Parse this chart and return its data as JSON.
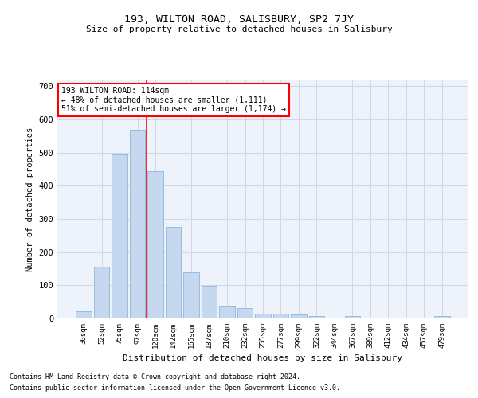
{
  "title1": "193, WILTON ROAD, SALISBURY, SP2 7JY",
  "title2": "Size of property relative to detached houses in Salisbury",
  "xlabel": "Distribution of detached houses by size in Salisbury",
  "ylabel": "Number of detached properties",
  "footer1": "Contains HM Land Registry data © Crown copyright and database right 2024.",
  "footer2": "Contains public sector information licensed under the Open Government Licence v3.0.",
  "categories": [
    "30sqm",
    "52sqm",
    "75sqm",
    "97sqm",
    "120sqm",
    "142sqm",
    "165sqm",
    "187sqm",
    "210sqm",
    "232sqm",
    "255sqm",
    "277sqm",
    "299sqm",
    "322sqm",
    "344sqm",
    "367sqm",
    "389sqm",
    "412sqm",
    "434sqm",
    "457sqm",
    "479sqm"
  ],
  "values": [
    22,
    155,
    495,
    570,
    445,
    275,
    140,
    98,
    35,
    32,
    15,
    15,
    12,
    7,
    0,
    7,
    0,
    0,
    0,
    0,
    7
  ],
  "bar_color": "#c5d8f0",
  "bar_edge_color": "#7bafd4",
  "grid_color": "#d0d8e8",
  "background_color": "#eef2fa",
  "vline_color": "red",
  "annotation_text": "193 WILTON ROAD: 114sqm\n← 48% of detached houses are smaller (1,111)\n51% of semi-detached houses are larger (1,174) →",
  "ylim": [
    0,
    720
  ],
  "yticks": [
    0,
    100,
    200,
    300,
    400,
    500,
    600,
    700
  ]
}
